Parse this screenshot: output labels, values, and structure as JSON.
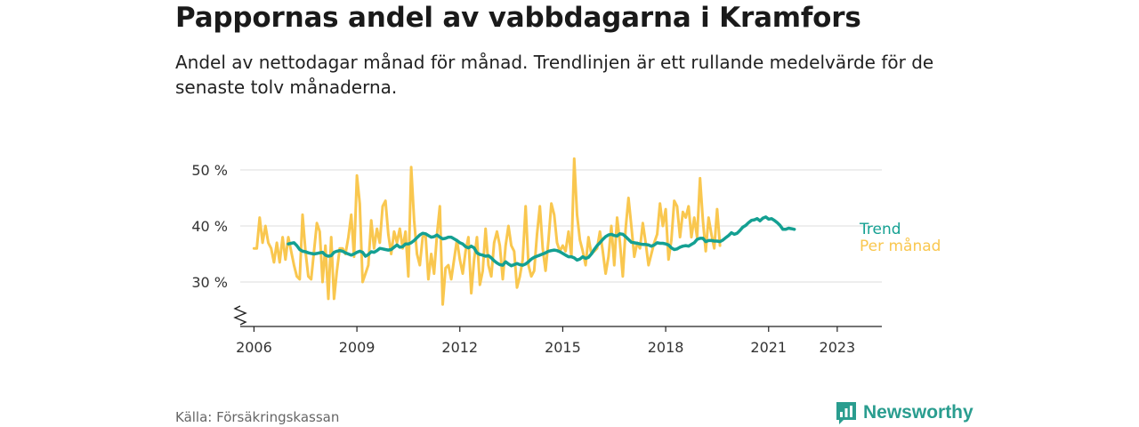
{
  "header": {
    "title": "Pappornas andel av vabbdagarna i Kramfors",
    "subtitle": "Andel av nettodagar månad för månad. Trendlinjen är ett rullande medelvärde för de senaste tolv månaderna."
  },
  "footer": {
    "source": "Källa: Försäkringskassan",
    "brand": "Newsworthy",
    "brand_icon": "bar-chart-logo-icon"
  },
  "colors": {
    "monthly": "#f9c74f",
    "trend": "#14a092",
    "grid": "#dddddd",
    "axis": "#222222"
  },
  "chart_data": {
    "type": "line",
    "x_start": "2006-01",
    "x_step": "month",
    "xlim": [
      2005.6,
      2024.3
    ],
    "ylim": [
      22,
      52
    ],
    "y_ticks": [
      30,
      40,
      50
    ],
    "y_tick_labels": [
      "30 %",
      "40 %",
      "50 %"
    ],
    "x_ticks": [
      2006,
      2009,
      2012,
      2015,
      2018,
      2021,
      2023
    ],
    "x_tick_labels": [
      "2006",
      "2009",
      "2012",
      "2015",
      "2018",
      "2021",
      "2023"
    ],
    "y_axis_break": true,
    "grid": true,
    "series": [
      {
        "name": "Per månad",
        "values": [
          36,
          36,
          41.5,
          37,
          40,
          37,
          36,
          33.5,
          37,
          33.5,
          38,
          34,
          38,
          35.5,
          33,
          31,
          30.5,
          42,
          35.5,
          31,
          30.5,
          35.5,
          40.5,
          39,
          30,
          36.5,
          27,
          38,
          27,
          32,
          36,
          36,
          35,
          38,
          42,
          34.5,
          49,
          44,
          30,
          31.5,
          33,
          41,
          36,
          39.5,
          37,
          43.5,
          44.5,
          38.5,
          35,
          39,
          37,
          39.5,
          36,
          39,
          31,
          50.5,
          41,
          35,
          33,
          38,
          38.5,
          30.5,
          35,
          31.5,
          38.5,
          43.5,
          26,
          32.5,
          33,
          30.5,
          34,
          37.5,
          34,
          31.5,
          35.5,
          38,
          28,
          34,
          38,
          29.5,
          32,
          39.5,
          33,
          31,
          37,
          39,
          36.5,
          30.5,
          36.5,
          40,
          36.5,
          35.5,
          29,
          31,
          34,
          43.5,
          33,
          31,
          32,
          38.5,
          43.5,
          36,
          32,
          37.5,
          44,
          42,
          37,
          35.5,
          36.5,
          35.5,
          39,
          34.5,
          52,
          42,
          37.5,
          35.5,
          33,
          38,
          35,
          35.5,
          36,
          39,
          35.5,
          31.5,
          34.5,
          40,
          33,
          41.5,
          37,
          31,
          39.5,
          45,
          40,
          34.5,
          37,
          36,
          40.5,
          37,
          33,
          35,
          37,
          38.5,
          44,
          40,
          43,
          34,
          37.5,
          44.5,
          43.5,
          38,
          42.5,
          41.5,
          43.5,
          38,
          41.5,
          38,
          48.5,
          41,
          35.5,
          41.5,
          38.5,
          36,
          43,
          36.5
        ]
      },
      {
        "name": "Trend",
        "start_index": 12,
        "values": [
          36.8,
          36.9,
          37,
          36.5,
          35.8,
          35.5,
          35.4,
          35.2,
          35.1,
          35,
          35.1,
          35.2,
          35.3,
          34.8,
          34.6,
          34.7,
          35.3,
          35.5,
          35.6,
          35.5,
          35.2,
          35,
          34.8,
          35,
          35.3,
          35.5,
          35.3,
          34.6,
          34.9,
          35.4,
          35.3,
          35.6,
          36,
          35.9,
          35.8,
          35.7,
          35.8,
          36.2,
          36.6,
          36.2,
          36.3,
          36.8,
          36.8,
          37,
          37.4,
          37.9,
          38.4,
          38.7,
          38.6,
          38.3,
          38,
          38.1,
          38.4,
          38,
          37.7,
          37.8,
          38,
          38,
          37.7,
          37.4,
          37,
          36.8,
          36.3,
          36.1,
          36.4,
          36.1,
          35.2,
          34.9,
          34.8,
          34.6,
          34.7,
          34.3,
          33.8,
          33.4,
          33.1,
          33,
          33.6,
          33.2,
          32.9,
          33.1,
          33.3,
          33.1,
          33,
          33.2,
          33.6,
          34.1,
          34.4,
          34.6,
          34.8,
          35,
          35.2,
          35.5,
          35.6,
          35.7,
          35.6,
          35.4,
          35.1,
          34.8,
          34.5,
          34.5,
          34.3,
          33.9,
          34.1,
          34.5,
          34.2,
          34.4,
          35,
          35.8,
          36.5,
          37,
          37.6,
          38.1,
          38.4,
          38.5,
          38.3,
          38.2,
          38.6,
          38.5,
          38.1,
          37.6,
          37.1,
          37,
          36.9,
          36.8,
          36.7,
          36.7,
          36.6,
          36.4,
          36.6,
          37,
          36.9,
          36.9,
          36.8,
          36.6,
          36.1,
          35.8,
          35.9,
          36.2,
          36.4,
          36.5,
          36.4,
          36.7,
          37,
          37.6,
          37.8,
          37.8,
          37.2,
          37.4,
          37.4,
          37.3,
          37.3,
          37.2,
          37.5,
          37.9,
          38.3,
          38.8,
          38.5,
          38.7,
          39.2,
          39.8,
          40.1,
          40.6,
          41,
          41.1,
          41.3,
          40.9,
          41.4,
          41.6,
          41.2,
          41.3,
          41,
          40.6,
          40.1,
          39.4,
          39.4,
          39.6,
          39.5,
          39.4
        ]
      }
    ]
  }
}
